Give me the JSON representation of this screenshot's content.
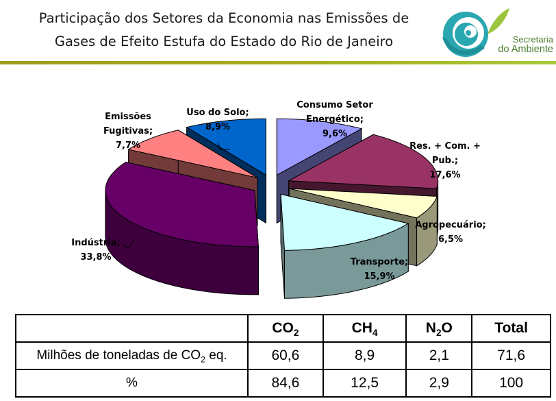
{
  "header": {
    "title_line1": "Participação dos Setores da Economia nas Emissões de",
    "title_line2": "Gases de Efeito Estufa do Estado do Rio de Janeiro",
    "logo_line1": "Secretaria",
    "logo_line2": "do Ambiente"
  },
  "chart_data": {
    "type": "pie",
    "title": "",
    "style": "3d-exploded",
    "slices": [
      {
        "label_lines": [
          "Consumo Setor",
          "Energético;",
          "9,6%"
        ],
        "name": "Consumo Setor Energético",
        "value": 9.6,
        "color": "#9999ff"
      },
      {
        "label_lines": [
          "Res. + Com. +",
          "Pub.;",
          "17,6%"
        ],
        "name": "Res. + Com. + Pub.",
        "value": 17.6,
        "color": "#993366"
      },
      {
        "label_lines": [
          "Agropecuário;",
          "6,5%"
        ],
        "name": "Agropecuário",
        "value": 6.5,
        "color": "#ffffcc"
      },
      {
        "label_lines": [
          "Transporte;",
          "15,9%"
        ],
        "name": "Transporte",
        "value": 15.9,
        "color": "#ccffff"
      },
      {
        "label_lines": [
          "Indústria;",
          "33,8%"
        ],
        "name": "Indústria",
        "value": 33.8,
        "color": "#660066"
      },
      {
        "label_lines": [
          "Emissões",
          "Fugitivas;",
          "7,7%"
        ],
        "name": "Emissões Fugitivas",
        "value": 7.7,
        "color": "#ff8080"
      },
      {
        "label_lines": [
          "Uso do Solo;",
          "8,9%"
        ],
        "name": "Uso do Solo",
        "value": 8.9,
        "color": "#0066cc"
      }
    ]
  },
  "table": {
    "headers": [
      "",
      "CO",
      "CH",
      "N",
      "Total"
    ],
    "header_subs": [
      "",
      "2",
      "4",
      "2",
      ""
    ],
    "header_tail": [
      "",
      "",
      "",
      "O",
      ""
    ],
    "row1_label_pre": "Milhões de toneladas de CO",
    "row1_label_sub": "2",
    "row1_label_post": " eq.",
    "row1": [
      "60,6",
      "8,9",
      "2,1",
      "71,6"
    ],
    "row2_label": "%",
    "row2": [
      "84,6",
      "12,5",
      "2,9",
      "100"
    ]
  }
}
